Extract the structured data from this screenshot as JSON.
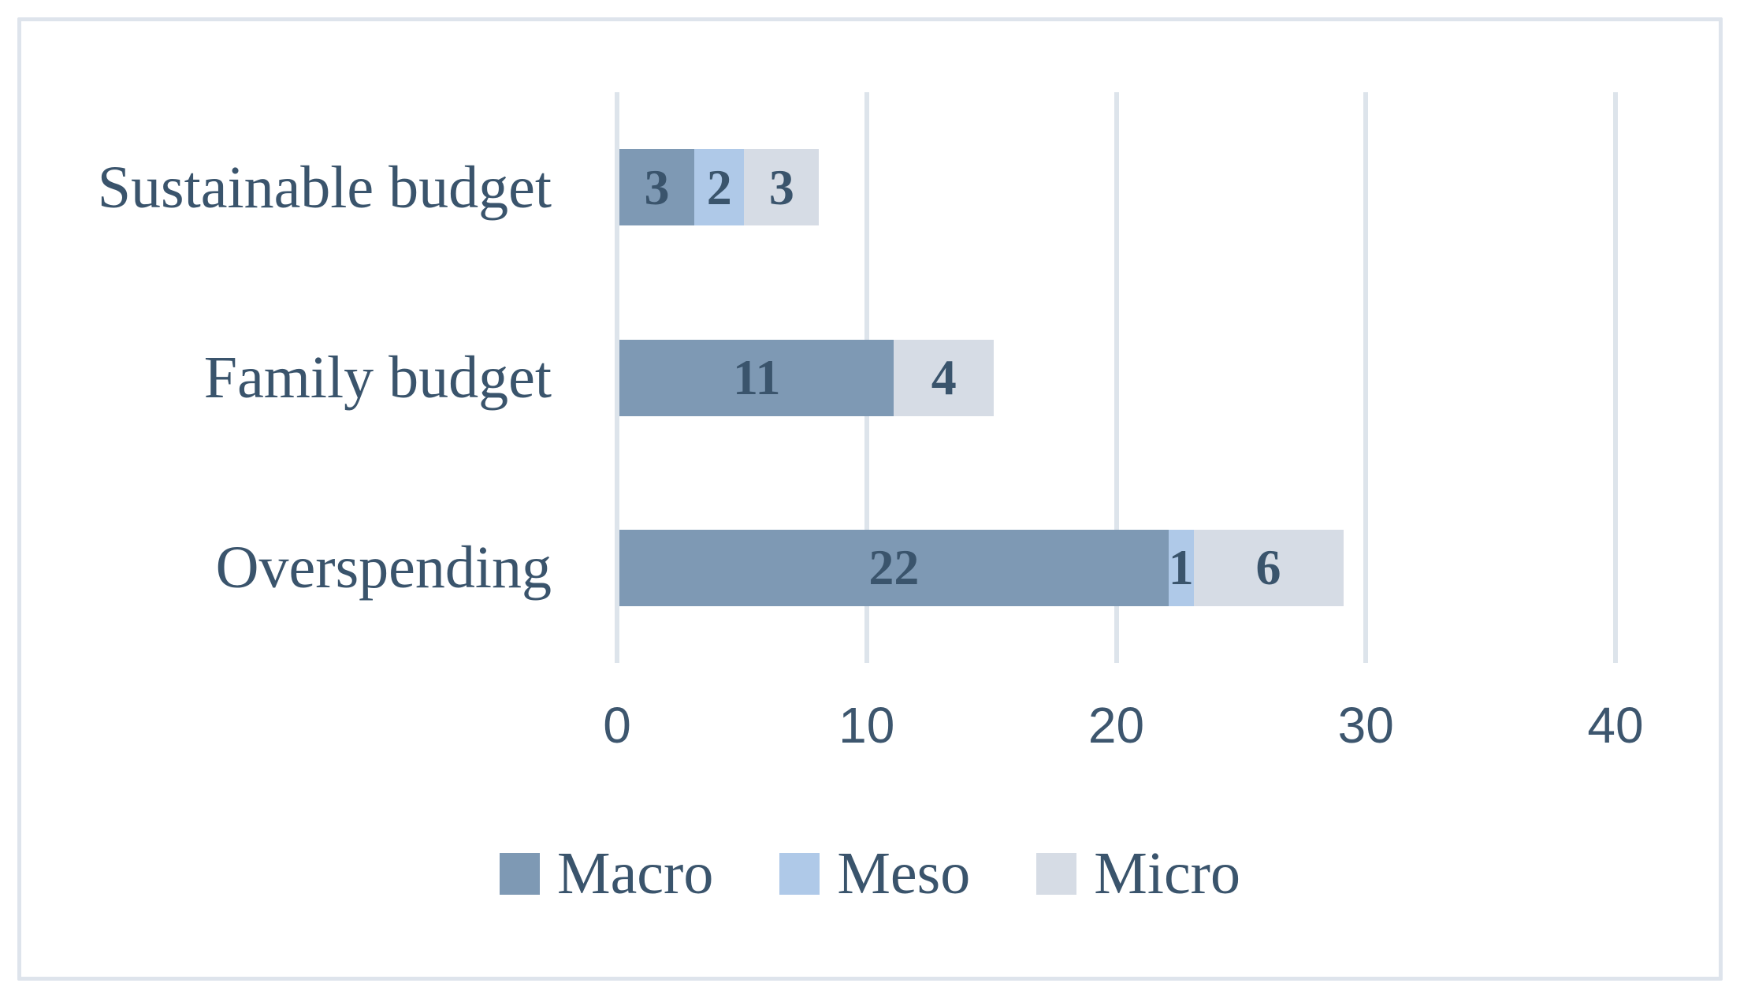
{
  "chart_data": {
    "type": "bar",
    "orientation": "horizontal",
    "stacked": true,
    "title": "",
    "xlabel": "",
    "ylabel": "",
    "categories": [
      "Sustainable budget",
      "Family budget",
      "Overspending"
    ],
    "series": [
      {
        "name": "Macro",
        "color": "#7e99b4",
        "values": [
          3,
          11,
          22
        ]
      },
      {
        "name": "Meso",
        "color": "#afc9e8",
        "values": [
          2,
          0,
          1
        ]
      },
      {
        "name": "Micro",
        "color": "#d6dce5",
        "values": [
          3,
          4,
          6
        ]
      }
    ],
    "xlim": [
      0,
      40
    ],
    "xticks": [
      0,
      10,
      20,
      30,
      40
    ],
    "grid": "vertical-only",
    "legend_position": "bottom-center",
    "data_labels_shown": true
  },
  "colors": {
    "label_text": "#3a546c",
    "tick_text": "#3d566e",
    "gridline": "#dde4eb",
    "frame_border": "#dee4ec",
    "background": "#ffffff"
  }
}
